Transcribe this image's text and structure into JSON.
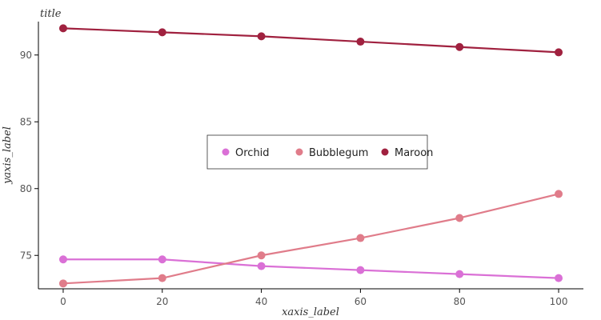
{
  "chart_data": {
    "type": "scatter",
    "title": "title",
    "xlabel": "xaxis_label",
    "ylabel": "yaxis_label",
    "xlim": [
      -5,
      105
    ],
    "ylim": [
      72.5,
      92.5
    ],
    "xticks": [
      0,
      20,
      40,
      60,
      80,
      100
    ],
    "yticks": [
      75,
      80,
      85,
      90
    ],
    "legend_position": "center",
    "grid": false,
    "series": [
      {
        "name": "Orchid",
        "color": "#DA70D6",
        "points": [
          {
            "x": 0,
            "y": 74.7
          },
          {
            "x": 20,
            "y": 74.7
          },
          {
            "x": 40,
            "y": 74.2
          },
          {
            "x": 60,
            "y": 73.9
          },
          {
            "x": 80,
            "y": 73.6
          },
          {
            "x": 100,
            "y": 73.3
          }
        ]
      },
      {
        "name": "Bubblegum",
        "color": "#E07C8A",
        "points": [
          {
            "x": 0,
            "y": 72.9
          },
          {
            "x": 20,
            "y": 73.3
          },
          {
            "x": 40,
            "y": 75.0
          },
          {
            "x": 60,
            "y": 76.3
          },
          {
            "x": 80,
            "y": 77.8
          },
          {
            "x": 100,
            "y": 79.6
          }
        ]
      },
      {
        "name": "Maroon",
        "color": "#A0213F",
        "points": [
          {
            "x": 0,
            "y": 92.0
          },
          {
            "x": 20,
            "y": 91.7
          },
          {
            "x": 40,
            "y": 91.4
          },
          {
            "x": 60,
            "y": 91.0
          },
          {
            "x": 80,
            "y": 90.6
          },
          {
            "x": 100,
            "y": 90.2
          }
        ]
      }
    ]
  }
}
